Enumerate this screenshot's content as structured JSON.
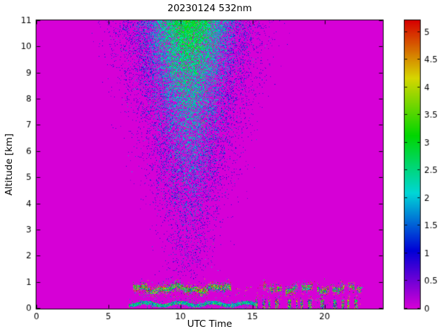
{
  "chart_data": {
    "type": "heatmap",
    "title": "20230124 532nm",
    "xlabel": "UTC Time",
    "ylabel": "Altitude [km]",
    "xlim": [
      0,
      24
    ],
    "ylim": [
      0,
      11
    ],
    "xticks": [
      0,
      5,
      10,
      15,
      20
    ],
    "yticks": [
      0,
      1,
      2,
      3,
      4,
      5,
      6,
      7,
      8,
      9,
      10,
      11
    ],
    "grid": false,
    "legend": false,
    "colorbar": {
      "position": "right",
      "min": 0,
      "max": 5.2,
      "ticks": [
        0,
        0.5,
        1,
        1.5,
        2,
        2.5,
        3,
        3.5,
        4,
        4.5,
        5
      ]
    },
    "colormap": {
      "style": "hsv-reversed",
      "zero_hue_deg": 300,
      "max_hue_deg": 0,
      "saturation": 1,
      "brightness": 0.84,
      "background_hex": "#d600d6"
    },
    "background_value": 0,
    "features": {
      "plume": {
        "description": "tall speckled noise/backscatter plume, densest and greenest near top center",
        "t_center": 10.6,
        "t_halfwidth_top": 4.6,
        "t_halfwidth_bottom": 1.3,
        "z_range": [
          0,
          11
        ],
        "peak_value": 3.4
      },
      "aerosol_layer": {
        "description": "thin multicolor broken aerosol layer near 0.75 km",
        "t_range": [
          6.7,
          22.6
        ],
        "z_center": 0.75,
        "z_thickness": 0.3,
        "gap_t_range": [
          13.5,
          15.7
        ],
        "value_range": [
          1.1,
          5.2
        ]
      },
      "surface_layer": {
        "description": "near-surface green/cyan layer, continuous then broken bursts",
        "continuous_t_range": [
          6.4,
          15.2
        ],
        "broken_t_range": [
          15.2,
          22.6
        ],
        "z_top": 0.4,
        "value_range": [
          0.7,
          5.0
        ]
      }
    }
  }
}
